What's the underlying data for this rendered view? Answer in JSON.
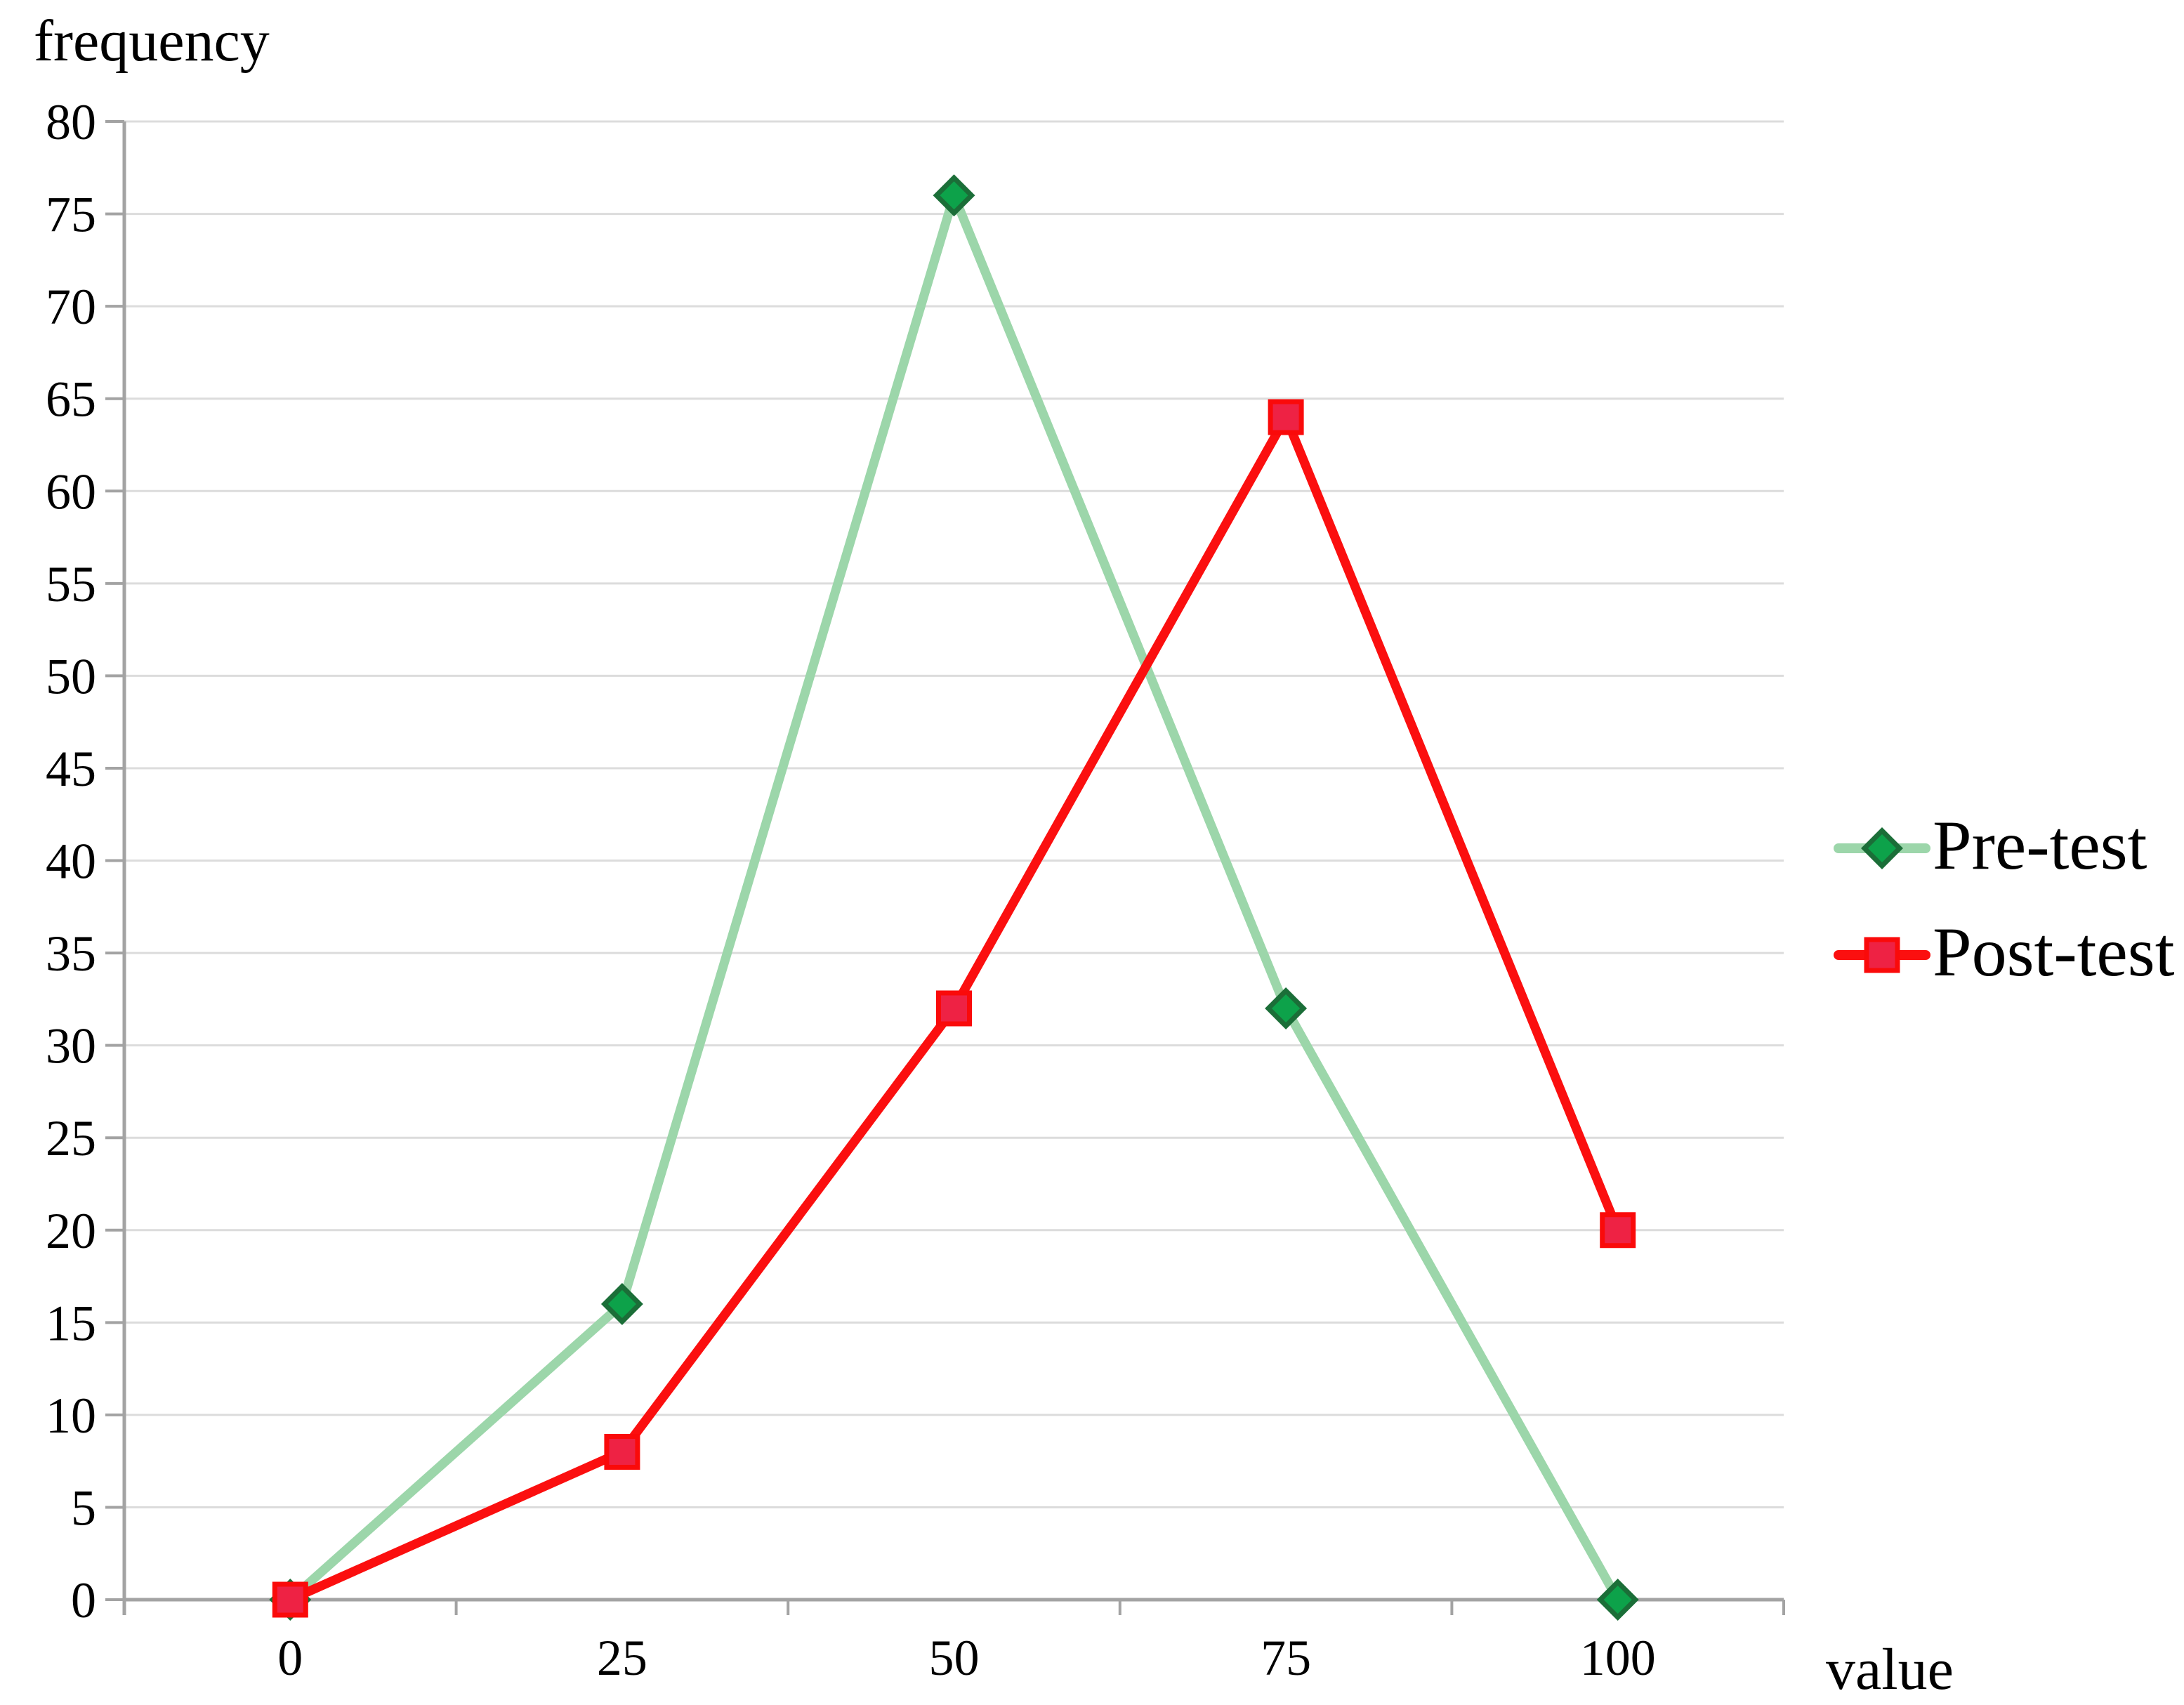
{
  "chart_data": {
    "type": "line",
    "title": "",
    "xlabel": "value",
    "ylabel": "frequency",
    "categories": [
      "0",
      "25",
      "50",
      "75",
      "100"
    ],
    "series": [
      {
        "name": "Pre-test",
        "values": [
          0,
          16,
          76,
          32,
          0
        ],
        "marker": "diamond",
        "line_color": "#9cd6aa",
        "marker_fill": "#0da24a",
        "marker_stroke": "#1b6e38"
      },
      {
        "name": "Post-test",
        "values": [
          0,
          8,
          32,
          64,
          20
        ],
        "marker": "square",
        "line_color": "#fb0f0f",
        "marker_fill": "#ee2244",
        "marker_stroke": "#fa0a0a"
      }
    ],
    "ylim": [
      0,
      80
    ],
    "ytick_step": 5,
    "yticks": [
      0,
      5,
      10,
      15,
      20,
      25,
      30,
      35,
      40,
      45,
      50,
      55,
      60,
      65,
      70,
      75,
      80
    ],
    "grid": true,
    "legend_position": "right",
    "grid_color": "#dcdcdc",
    "axis_color": "#a3a3a3",
    "text_color": "#000000",
    "background_color": "#ffffff"
  }
}
